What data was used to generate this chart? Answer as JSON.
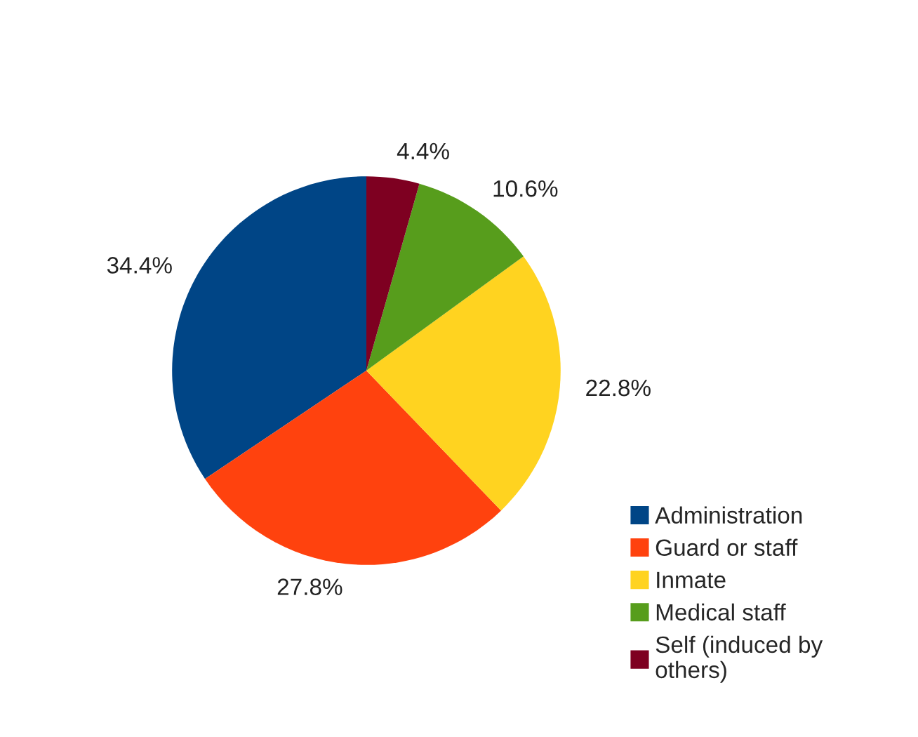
{
  "chart_data": {
    "type": "pie",
    "categories": [
      "Administration",
      "Guard or staff",
      "Inmate",
      "Medical staff",
      "Self (induced by\nothers)"
    ],
    "values": [
      34.4,
      27.8,
      22.8,
      10.6,
      4.4
    ],
    "colors": [
      "#004586",
      "#ff420e",
      "#ffd320",
      "#579d1c",
      "#7e0021"
    ],
    "value_labels": [
      "34.4%",
      "27.8%",
      "22.8%",
      "10.6%",
      "4.4%"
    ],
    "legend": "bottom right"
  }
}
